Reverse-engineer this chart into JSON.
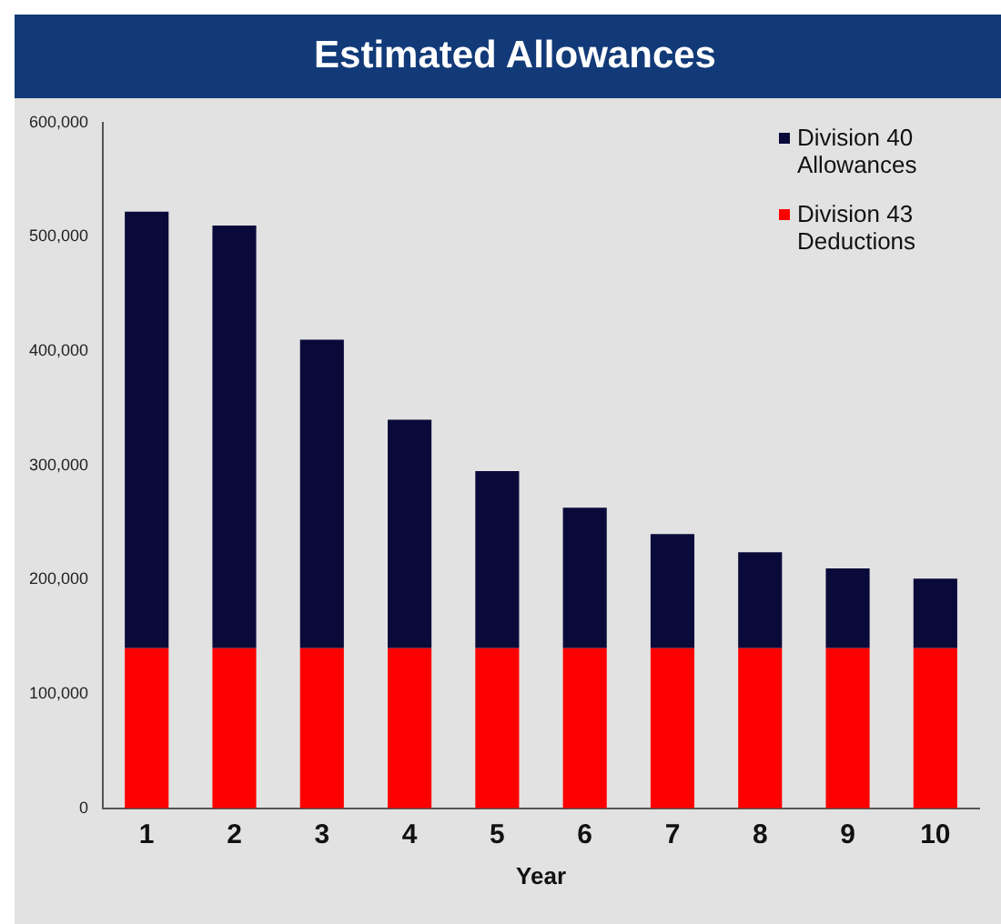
{
  "chart_data": {
    "type": "bar",
    "title": "Estimated Allowances",
    "xlabel": "Year",
    "categories": [
      "1",
      "2",
      "3",
      "4",
      "5",
      "6",
      "7",
      "8",
      "9",
      "10"
    ],
    "stacked": true,
    "series": [
      {
        "name": "Division 43 Deductions",
        "color": "#ff0000",
        "values": [
          140000,
          140000,
          140000,
          140000,
          140000,
          140000,
          140000,
          140000,
          140000,
          140000
        ]
      },
      {
        "name": "Division 40 Allowances",
        "color": "#0a0a3a",
        "values": [
          382000,
          370000,
          270000,
          200000,
          155000,
          123000,
          100000,
          84000,
          70000,
          61000
        ]
      }
    ],
    "ylim": [
      0,
      600000
    ],
    "yticks": [
      0,
      {
        "value": 100000,
        "label": "100,000"
      },
      {
        "value": 200000,
        "label": "200,000"
      },
      {
        "value": 300000,
        "label": "300,000"
      },
      {
        "value": 400000,
        "label": "400,000"
      },
      {
        "value": 500000,
        "label": "500,000"
      },
      {
        "value": 600000,
        "label": "600,000"
      }
    ],
    "grid": false,
    "legend": "top right"
  }
}
